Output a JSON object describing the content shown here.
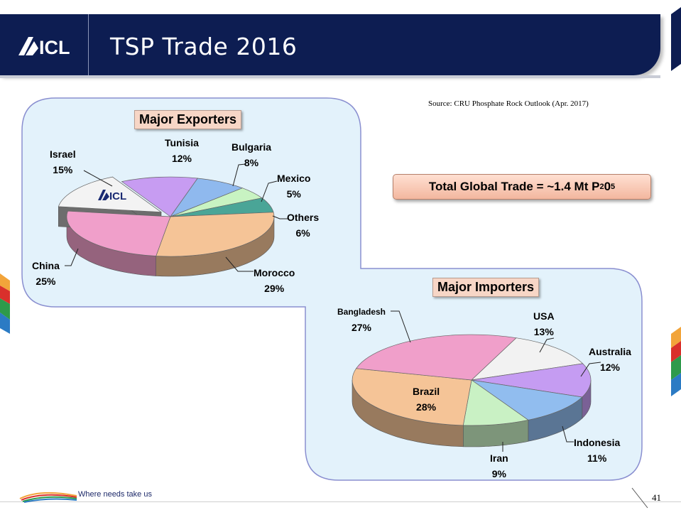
{
  "header": {
    "logo_text": "ICL",
    "title": "TSP Trade 2016"
  },
  "source": "Source: CRU  Phosphate Rock Outlook (Apr. 2017)",
  "total_box": {
    "text": "Total Global  Trade = ~1.4 Mt P",
    "sub1": "2",
    "mid": "0",
    "sub2": "5"
  },
  "footer": {
    "tagline": "Where needs take us",
    "page_number": "41"
  },
  "colors": {
    "header_navy": "#0d1d52",
    "panel_fill": "#e3f2fb",
    "panel_border": "#8a8fd0"
  },
  "chart_data": [
    {
      "type": "pie",
      "title": "Major Exporters",
      "unit": "%",
      "logo_on_slice": "ICL",
      "exploded_slice": "Israel",
      "slices": [
        {
          "label": "Tunisia",
          "value": 12,
          "color": "#c79cf2"
        },
        {
          "label": "Bulgaria",
          "value": 8,
          "color": "#8fb9ee"
        },
        {
          "label": "Mexico",
          "value": 5,
          "color": "#c8f3c2"
        },
        {
          "label": "Others",
          "value": 6,
          "color": "#4aa597"
        },
        {
          "label": "Morocco",
          "value": 29,
          "color": "#f5c497"
        },
        {
          "label": "China",
          "value": 25,
          "color": "#f09fca"
        },
        {
          "label": "Israel",
          "value": 15,
          "color": "#f3f3f3"
        }
      ]
    },
    {
      "type": "pie",
      "title": "Major Importers",
      "unit": "%",
      "slices": [
        {
          "label": "USA",
          "value": 13,
          "color": "#f2f2f2"
        },
        {
          "label": "Australia",
          "value": 12,
          "color": "#c59cf2"
        },
        {
          "label": "Indonesia",
          "value": 11,
          "color": "#91bdef"
        },
        {
          "label": "Iran",
          "value": 9,
          "color": "#c9f1c4"
        },
        {
          "label": "Brazil",
          "value": 28,
          "color": "#f5c497"
        },
        {
          "label": "Bangladesh",
          "value": 27,
          "color": "#f09fca"
        }
      ]
    }
  ],
  "labels": {
    "exporters": {
      "Tunisia": "12%",
      "Bulgaria": "8%",
      "Mexico": "5%",
      "Others": "6%",
      "Morocco": "29%",
      "China": "25%",
      "Israel": "15%"
    },
    "importers": {
      "USA": "13%",
      "Australia": "12%",
      "Indonesia": "11%",
      "Iran": "9%",
      "Brazil": "28%",
      "Bangladesh": "27%"
    }
  }
}
